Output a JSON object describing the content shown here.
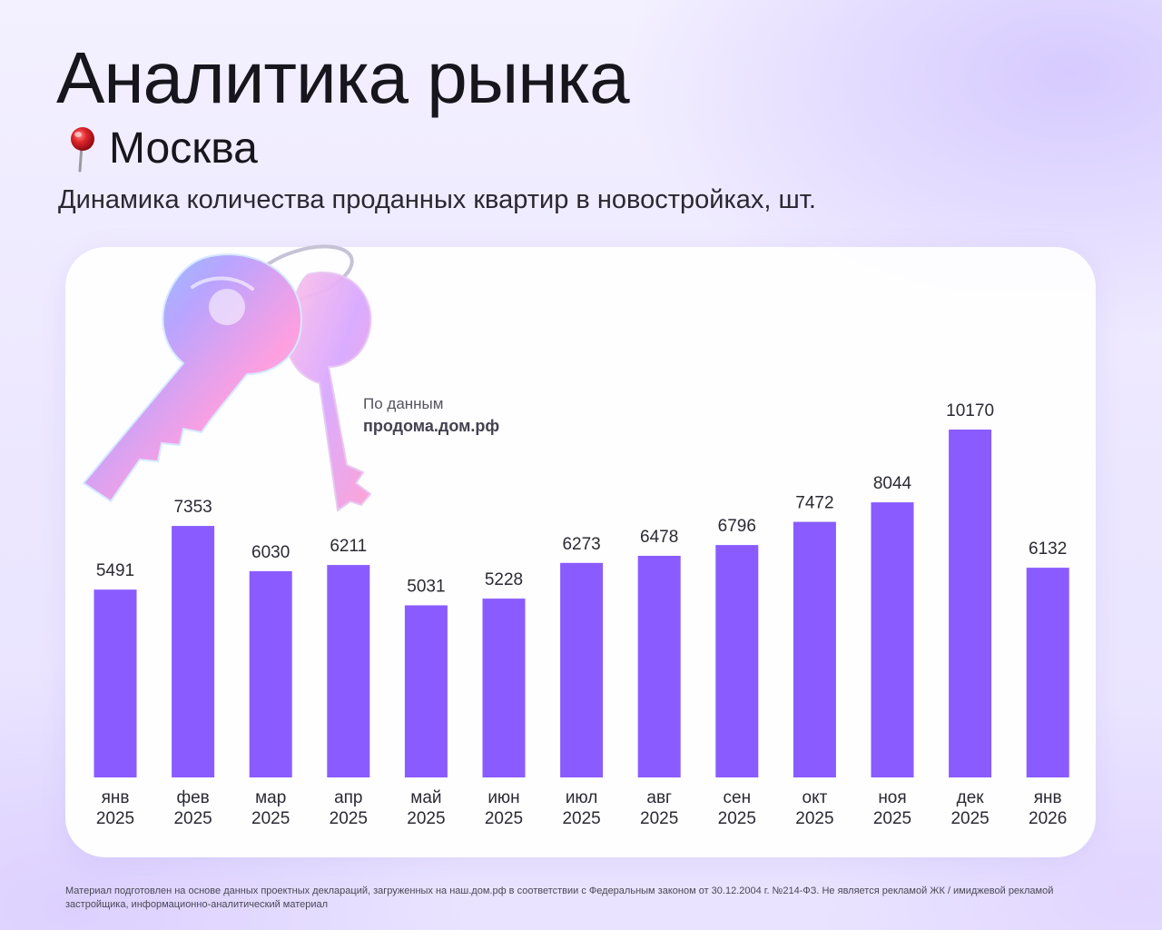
{
  "header": {
    "title": "Аналитика рынка",
    "city": "Москва",
    "subtitle": "Динамика количества проданных квартир в новостройках, шт."
  },
  "source": {
    "label": "По данным",
    "site": "продома.дом.рф"
  },
  "icons": {
    "pin": "map-pin-icon",
    "keys": "keys-illustration"
  },
  "colors": {
    "bar": "#8a5cff",
    "pin": "#e0242b"
  },
  "chart_data": {
    "type": "bar",
    "title": "Динамика количества проданных квартир в новостройках, шт.",
    "xlabel": "",
    "ylabel": "",
    "grid": false,
    "categories": [
      [
        "янв",
        "2025"
      ],
      [
        "фев",
        "2025"
      ],
      [
        "мар",
        "2025"
      ],
      [
        "апр",
        "2025"
      ],
      [
        "май",
        "2025"
      ],
      [
        "июн",
        "2025"
      ],
      [
        "июл",
        "2025"
      ],
      [
        "авг",
        "2025"
      ],
      [
        "сен",
        "2025"
      ],
      [
        "окт",
        "2025"
      ],
      [
        "ноя",
        "2025"
      ],
      [
        "дек",
        "2025"
      ],
      [
        "янв",
        "2026"
      ]
    ],
    "values": [
      5491,
      7353,
      6030,
      6211,
      5031,
      5228,
      6273,
      6478,
      6796,
      7472,
      8044,
      10170,
      6132
    ],
    "data_labels": [
      "5491",
      "7353",
      "6030",
      "6211",
      "5031",
      "5228",
      "6273",
      "6478",
      "6796",
      "7472",
      "8044",
      "10170",
      "6132"
    ],
    "ylim": [
      0,
      10170
    ]
  },
  "footer": {
    "disclaimer": "Материал подготовлен на основе данных проектных деклараций, загруженных на наш.дом.рф в соответствии с Федеральным законом от 30.12.2004 г. №214-ФЗ. Не является рекламой ЖК / имиджевой рекламой застройщика, информационно-аналитический материал"
  }
}
